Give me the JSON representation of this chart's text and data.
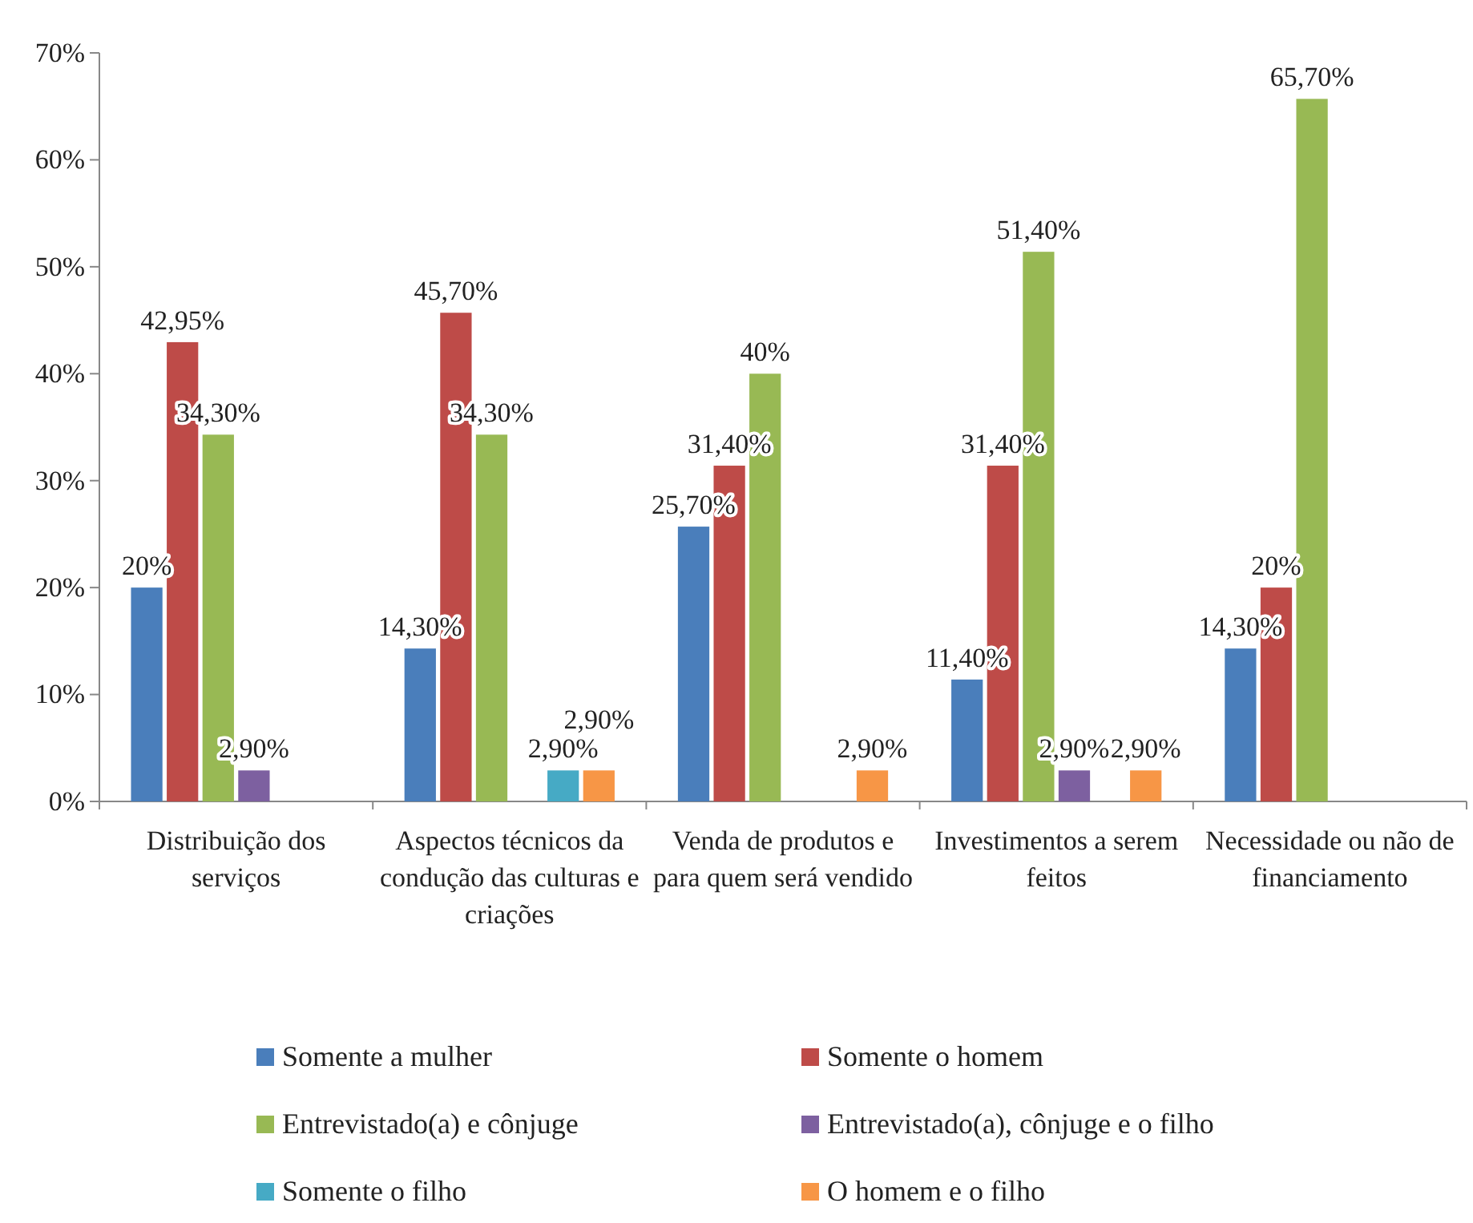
{
  "chart_data": {
    "type": "bar",
    "categories": [
      "Distribuição dos serviços",
      "Aspectos técnicos da condução das culturas e criações",
      "Venda de produtos e para quem será vendido",
      "Investimentos a serem feitos",
      "Necessidade ou não de financiamento"
    ],
    "series": [
      {
        "name": "Somente a mulher",
        "color": "#4a7ebb",
        "values": [
          20,
          14.3,
          25.7,
          11.4,
          14.3
        ],
        "value_labels": [
          "20%",
          "14,30%",
          "25,70%",
          "11,40%",
          "14,30%"
        ]
      },
      {
        "name": "Somente o homem",
        "color": "#be4b48",
        "values": [
          42.95,
          45.7,
          31.4,
          31.4,
          20
        ],
        "value_labels": [
          "42,95%",
          "45,70%",
          "31,40%",
          "31,40%",
          "20%"
        ]
      },
      {
        "name": "Entrevistado(a) e cônjuge",
        "color": "#98b954",
        "values": [
          34.3,
          34.3,
          40,
          51.4,
          65.7
        ],
        "value_labels": [
          "34,30%",
          "34,30%",
          "40%",
          "51,40%",
          "65,70%"
        ]
      },
      {
        "name": "Entrevistado(a), cônjuge e o filho",
        "color": "#7d60a0",
        "values": [
          2.9,
          null,
          null,
          2.9,
          null
        ],
        "value_labels": [
          "2,90%",
          null,
          null,
          "2,90%",
          null
        ]
      },
      {
        "name": "Somente o filho",
        "color": "#46aac5",
        "values": [
          null,
          2.9,
          null,
          null,
          null
        ],
        "value_labels": [
          null,
          "2,90%",
          null,
          null,
          null
        ]
      },
      {
        "name": "O homem e o filho",
        "color": "#f79646",
        "values": [
          null,
          2.9,
          2.9,
          2.9,
          null
        ],
        "value_labels": [
          null,
          "2,90%",
          "2,90%",
          "2,90%",
          null
        ]
      }
    ],
    "ylim": [
      0,
      70
    ],
    "yticks": [
      {
        "value": 0,
        "label": "0%"
      },
      {
        "value": 10,
        "label": "10%"
      },
      {
        "value": 20,
        "label": "20%"
      },
      {
        "value": 30,
        "label": "30%"
      },
      {
        "value": 40,
        "label": "40%"
      },
      {
        "value": 50,
        "label": "50%"
      },
      {
        "value": 60,
        "label": "60%"
      },
      {
        "value": 70,
        "label": "70%"
      }
    ],
    "grid": false,
    "legend": "bottom"
  }
}
